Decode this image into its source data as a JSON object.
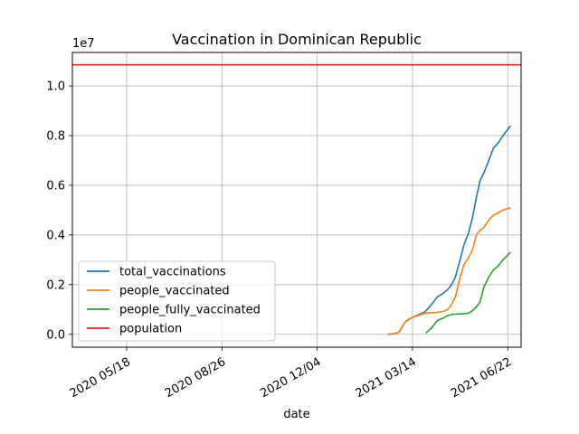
{
  "chart_data": {
    "type": "line",
    "title": "Vaccination in Dominican Republic",
    "xlabel": "date",
    "ylabel": "",
    "y_multiplier_label": "1e7",
    "ylim": [
      -520000,
      11350000
    ],
    "xlim": [
      "2020-03-22",
      "2021-07-06"
    ],
    "grid": true,
    "legend_position": "lower-left",
    "x_ticks": [
      "2020-05-18",
      "2020-08-26",
      "2020-12-04",
      "2021-03-14",
      "2021-06-22"
    ],
    "x_tick_labels": [
      "2020 05/18",
      "2020 08/26",
      "2020 12/04",
      "2021 03/14",
      "2021 06/22"
    ],
    "y_ticks": [
      0,
      2000000,
      4000000,
      6000000,
      8000000,
      10000000
    ],
    "y_tick_labels": [
      "0.0",
      "0.2",
      "0.4",
      "0.6",
      "0.8",
      "1.0"
    ],
    "series": [
      {
        "name": "total_vaccinations",
        "color": "#1f77b4",
        "points": [
          [
            "2021-02-16",
            0
          ],
          [
            "2021-02-20",
            10000
          ],
          [
            "2021-02-25",
            40000
          ],
          [
            "2021-02-28",
            100000
          ],
          [
            "2021-03-04",
            350000
          ],
          [
            "2021-03-07",
            520000
          ],
          [
            "2021-03-10",
            600000
          ],
          [
            "2021-03-14",
            680000
          ],
          [
            "2021-03-20",
            780000
          ],
          [
            "2021-03-27",
            900000
          ],
          [
            "2021-04-03",
            1200000
          ],
          [
            "2021-04-09",
            1500000
          ],
          [
            "2021-04-15",
            1650000
          ],
          [
            "2021-04-20",
            1800000
          ],
          [
            "2021-04-24",
            2000000
          ],
          [
            "2021-04-28",
            2300000
          ],
          [
            "2021-05-03",
            3000000
          ],
          [
            "2021-05-07",
            3600000
          ],
          [
            "2021-05-12",
            4100000
          ],
          [
            "2021-05-16",
            4700000
          ],
          [
            "2021-05-20",
            5500000
          ],
          [
            "2021-05-24",
            6200000
          ],
          [
            "2021-05-28",
            6500000
          ],
          [
            "2021-06-02",
            7000000
          ],
          [
            "2021-06-07",
            7500000
          ],
          [
            "2021-06-12",
            7700000
          ],
          [
            "2021-06-17",
            8000000
          ],
          [
            "2021-06-21",
            8200000
          ],
          [
            "2021-06-25",
            8400000
          ]
        ]
      },
      {
        "name": "people_vaccinated",
        "color": "#ff7f0e",
        "points": [
          [
            "2021-02-16",
            0
          ],
          [
            "2021-02-20",
            10000
          ],
          [
            "2021-02-25",
            40000
          ],
          [
            "2021-02-28",
            100000
          ],
          [
            "2021-03-04",
            350000
          ],
          [
            "2021-03-07",
            520000
          ],
          [
            "2021-03-10",
            600000
          ],
          [
            "2021-03-14",
            680000
          ],
          [
            "2021-03-20",
            750000
          ],
          [
            "2021-03-27",
            850000
          ],
          [
            "2021-04-03",
            870000
          ],
          [
            "2021-04-09",
            880000
          ],
          [
            "2021-04-15",
            920000
          ],
          [
            "2021-04-20",
            1000000
          ],
          [
            "2021-04-24",
            1200000
          ],
          [
            "2021-04-28",
            1500000
          ],
          [
            "2021-05-03",
            2300000
          ],
          [
            "2021-05-07",
            2800000
          ],
          [
            "2021-05-12",
            3100000
          ],
          [
            "2021-05-16",
            3400000
          ],
          [
            "2021-05-20",
            4000000
          ],
          [
            "2021-05-24",
            4200000
          ],
          [
            "2021-05-28",
            4300000
          ],
          [
            "2021-06-02",
            4600000
          ],
          [
            "2021-06-07",
            4800000
          ],
          [
            "2021-06-12",
            4900000
          ],
          [
            "2021-06-17",
            5000000
          ],
          [
            "2021-06-21",
            5050000
          ],
          [
            "2021-06-25",
            5100000
          ]
        ]
      },
      {
        "name": "people_fully_vaccinated",
        "color": "#2ca02c",
        "points": [
          [
            "2021-03-28",
            50000
          ],
          [
            "2021-04-03",
            250000
          ],
          [
            "2021-04-09",
            550000
          ],
          [
            "2021-04-15",
            650000
          ],
          [
            "2021-04-20",
            750000
          ],
          [
            "2021-04-24",
            800000
          ],
          [
            "2021-04-28",
            810000
          ],
          [
            "2021-05-03",
            820000
          ],
          [
            "2021-05-07",
            830000
          ],
          [
            "2021-05-12",
            850000
          ],
          [
            "2021-05-16",
            950000
          ],
          [
            "2021-05-20",
            1100000
          ],
          [
            "2021-05-24",
            1300000
          ],
          [
            "2021-05-28",
            1900000
          ],
          [
            "2021-06-02",
            2300000
          ],
          [
            "2021-06-07",
            2600000
          ],
          [
            "2021-06-12",
            2750000
          ],
          [
            "2021-06-17",
            3000000
          ],
          [
            "2021-06-21",
            3150000
          ],
          [
            "2021-06-25",
            3300000
          ]
        ]
      },
      {
        "name": "population",
        "color": "#d62728",
        "points": [
          [
            "2020-03-22",
            10850000
          ],
          [
            "2021-07-06",
            10850000
          ]
        ]
      }
    ]
  }
}
